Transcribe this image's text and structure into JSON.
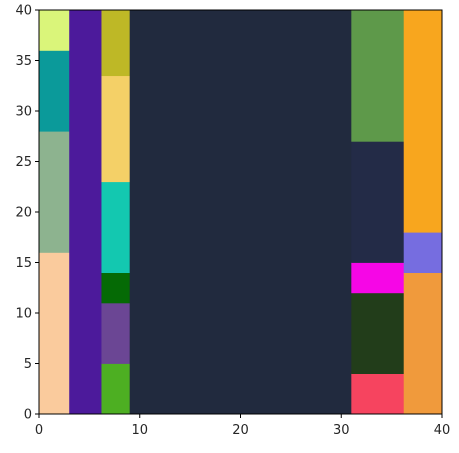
{
  "chart_data": {
    "type": "heatmap",
    "xlim": [
      0,
      40
    ],
    "ylim": [
      0,
      40
    ],
    "x_ticks": [
      0,
      10,
      20,
      30,
      40
    ],
    "y_ticks": [
      0,
      5,
      10,
      15,
      20,
      25,
      30,
      35,
      40
    ],
    "grid": false,
    "legend": "none",
    "cells": [
      {
        "x0": 0,
        "x1": 3,
        "y0": 0,
        "y1": 16,
        "color": "#FACB9D"
      },
      {
        "x0": 0,
        "x1": 3,
        "y0": 16,
        "y1": 28,
        "color": "#8DB38F"
      },
      {
        "x0": 0,
        "x1": 3,
        "y0": 28,
        "y1": 36,
        "color": "#0B9A9A"
      },
      {
        "x0": 0,
        "x1": 3,
        "y0": 36,
        "y1": 40,
        "color": "#DAF57A"
      },
      {
        "x0": 3,
        "x1": 6.2,
        "y0": 0,
        "y1": 40,
        "color": "#4C1A9B"
      },
      {
        "x0": 6.2,
        "x1": 9,
        "y0": 0,
        "y1": 5,
        "color": "#4DAF22"
      },
      {
        "x0": 6.2,
        "x1": 9,
        "y0": 5,
        "y1": 11,
        "color": "#6B4694"
      },
      {
        "x0": 6.2,
        "x1": 9,
        "y0": 11,
        "y1": 14,
        "color": "#056A05"
      },
      {
        "x0": 6.2,
        "x1": 9,
        "y0": 14,
        "y1": 23,
        "color": "#13C8B0"
      },
      {
        "x0": 6.2,
        "x1": 9,
        "y0": 23,
        "y1": 33.5,
        "color": "#F4D067"
      },
      {
        "x0": 6.2,
        "x1": 9,
        "y0": 33.5,
        "y1": 40,
        "color": "#BEB826"
      },
      {
        "x0": 9,
        "x1": 31,
        "y0": 0,
        "y1": 40,
        "color": "#212A3E"
      },
      {
        "x0": 31,
        "x1": 36.2,
        "y0": 0,
        "y1": 4,
        "color": "#F6445F"
      },
      {
        "x0": 31,
        "x1": 36.2,
        "y0": 4,
        "y1": 12,
        "color": "#223D1A"
      },
      {
        "x0": 31,
        "x1": 36.2,
        "y0": 12,
        "y1": 15,
        "color": "#F606E6"
      },
      {
        "x0": 31,
        "x1": 36.2,
        "y0": 15,
        "y1": 27,
        "color": "#232B47"
      },
      {
        "x0": 31,
        "x1": 36.2,
        "y0": 27,
        "y1": 40,
        "color": "#5E994A"
      },
      {
        "x0": 36.2,
        "x1": 40,
        "y0": 0,
        "y1": 14,
        "color": "#F09A3C"
      },
      {
        "x0": 36.2,
        "x1": 40,
        "y0": 14,
        "y1": 18,
        "color": "#766DE0"
      },
      {
        "x0": 36.2,
        "x1": 40,
        "y0": 18,
        "y1": 40,
        "color": "#F8A61E"
      }
    ]
  }
}
